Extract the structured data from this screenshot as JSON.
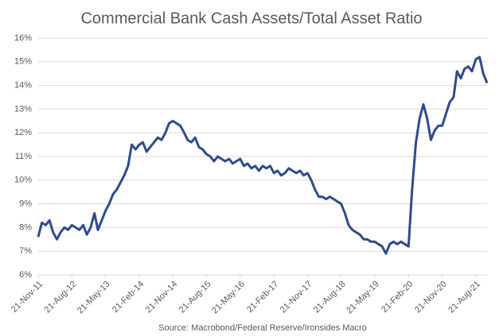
{
  "chart_data": {
    "type": "line",
    "title": "Commercial Bank Cash Assets/Total Asset Ratio",
    "source": "Source: Macrobond/Federal Reserve/Ironsides Macro",
    "x": [
      "2011-11-21",
      "2011-12-21",
      "2012-01-21",
      "2012-02-21",
      "2012-03-21",
      "2012-04-21",
      "2012-05-21",
      "2012-06-21",
      "2012-07-21",
      "2012-08-21",
      "2012-09-21",
      "2012-10-21",
      "2012-11-21",
      "2012-12-21",
      "2013-01-21",
      "2013-02-21",
      "2013-03-21",
      "2013-04-21",
      "2013-05-21",
      "2013-06-21",
      "2013-07-21",
      "2013-08-21",
      "2013-09-21",
      "2013-10-21",
      "2013-11-21",
      "2013-12-21",
      "2014-01-21",
      "2014-02-21",
      "2014-03-21",
      "2014-04-21",
      "2014-05-21",
      "2014-06-21",
      "2014-07-21",
      "2014-08-21",
      "2014-09-21",
      "2014-10-21",
      "2014-11-21",
      "2014-12-21",
      "2015-01-21",
      "2015-02-21",
      "2015-03-21",
      "2015-04-21",
      "2015-05-21",
      "2015-06-21",
      "2015-07-21",
      "2015-08-21",
      "2015-09-21",
      "2015-10-21",
      "2015-11-21",
      "2015-12-21",
      "2016-01-21",
      "2016-02-21",
      "2016-03-21",
      "2016-04-21",
      "2016-05-21",
      "2016-06-21",
      "2016-07-21",
      "2016-08-21",
      "2016-09-21",
      "2016-10-21",
      "2016-11-21",
      "2016-12-21",
      "2017-01-21",
      "2017-02-21",
      "2017-03-21",
      "2017-04-21",
      "2017-05-21",
      "2017-06-21",
      "2017-07-21",
      "2017-08-21",
      "2017-09-21",
      "2017-10-21",
      "2017-11-21",
      "2017-12-21",
      "2018-01-21",
      "2018-02-21",
      "2018-03-21",
      "2018-04-21",
      "2018-05-21",
      "2018-06-21",
      "2018-07-21",
      "2018-08-21",
      "2018-09-21",
      "2018-10-21",
      "2018-11-21",
      "2018-12-21",
      "2019-01-21",
      "2019-02-21",
      "2019-03-21",
      "2019-04-21",
      "2019-05-21",
      "2019-06-21",
      "2019-07-21",
      "2019-08-21",
      "2019-09-21",
      "2019-10-21",
      "2019-11-21",
      "2019-12-21",
      "2020-01-21",
      "2020-02-21",
      "2020-03-21",
      "2020-04-21",
      "2020-05-21",
      "2020-06-21",
      "2020-07-21",
      "2020-08-21",
      "2020-09-21",
      "2020-10-21",
      "2020-11-21",
      "2020-12-21",
      "2021-01-21",
      "2021-02-21",
      "2021-03-21",
      "2021-04-21",
      "2021-05-21",
      "2021-06-21",
      "2021-07-21",
      "2021-08-21",
      "2021-09-21",
      "2021-10-21",
      "2021-11-21"
    ],
    "series": [
      {
        "color": "#2f4b8c",
        "values": [
          7.6,
          8.2,
          8.1,
          8.3,
          7.8,
          7.5,
          7.8,
          8.0,
          7.9,
          8.1,
          8.0,
          7.9,
          8.1,
          7.7,
          8.0,
          8.6,
          7.9,
          8.3,
          8.7,
          9.0,
          9.4,
          9.6,
          9.9,
          10.2,
          10.6,
          11.5,
          11.3,
          11.5,
          11.6,
          11.2,
          11.4,
          11.6,
          11.8,
          11.7,
          12.0,
          12.4,
          12.5,
          12.4,
          12.3,
          12.0,
          11.7,
          11.6,
          11.8,
          11.4,
          11.3,
          11.1,
          11.0,
          10.8,
          11.0,
          10.9,
          10.8,
          10.9,
          10.7,
          10.8,
          10.9,
          10.6,
          10.7,
          10.5,
          10.6,
          10.4,
          10.6,
          10.5,
          10.6,
          10.3,
          10.4,
          10.2,
          10.3,
          10.5,
          10.4,
          10.3,
          10.4,
          10.2,
          10.3,
          10.0,
          9.6,
          9.3,
          9.3,
          9.2,
          9.3,
          9.2,
          9.1,
          9.0,
          8.6,
          8.1,
          7.9,
          7.8,
          7.7,
          7.5,
          7.5,
          7.4,
          7.4,
          7.3,
          7.2,
          6.9,
          7.3,
          7.4,
          7.3,
          7.4,
          7.3,
          7.2,
          9.6,
          11.6,
          12.6,
          13.2,
          12.6,
          11.7,
          12.1,
          12.3,
          12.3,
          12.8,
          13.3,
          13.5,
          14.6,
          14.3,
          14.7,
          14.8,
          14.6,
          15.1,
          15.2,
          14.5,
          14.1
        ]
      }
    ],
    "xlim": [
      "2011-11-21",
      "2021-11-21"
    ],
    "xticks": [
      {
        "value": "2011-11-21",
        "label": "21-Nov-11"
      },
      {
        "value": "2012-08-21",
        "label": "21-Aug-12"
      },
      {
        "value": "2013-05-21",
        "label": "21-May-13"
      },
      {
        "value": "2014-02-21",
        "label": "21-Feb-14"
      },
      {
        "value": "2014-11-21",
        "label": "21-Nov-14"
      },
      {
        "value": "2015-08-21",
        "label": "21-Aug-15"
      },
      {
        "value": "2016-05-21",
        "label": "21-May-16"
      },
      {
        "value": "2017-02-21",
        "label": "21-Feb-17"
      },
      {
        "value": "2017-11-21",
        "label": "21-Nov-17"
      },
      {
        "value": "2018-08-21",
        "label": "21-Aug-18"
      },
      {
        "value": "2019-05-21",
        "label": "21-May-19"
      },
      {
        "value": "2020-02-21",
        "label": "21-Feb-20"
      },
      {
        "value": "2020-11-21",
        "label": "21-Nov-20"
      },
      {
        "value": "2021-08-21",
        "label": "21-Aug-21"
      }
    ],
    "ylim": [
      6,
      16
    ],
    "yticks": [
      {
        "value": 6,
        "label": "6%"
      },
      {
        "value": 7,
        "label": "7%"
      },
      {
        "value": 8,
        "label": "8%"
      },
      {
        "value": 9,
        "label": "9%"
      },
      {
        "value": 10,
        "label": "10%"
      },
      {
        "value": 11,
        "label": "11%"
      },
      {
        "value": 12,
        "label": "12%"
      },
      {
        "value": 13,
        "label": "13%"
      },
      {
        "value": 14,
        "label": "14%"
      },
      {
        "value": 15,
        "label": "15%"
      },
      {
        "value": 16,
        "label": "16%"
      }
    ],
    "grid": true
  }
}
